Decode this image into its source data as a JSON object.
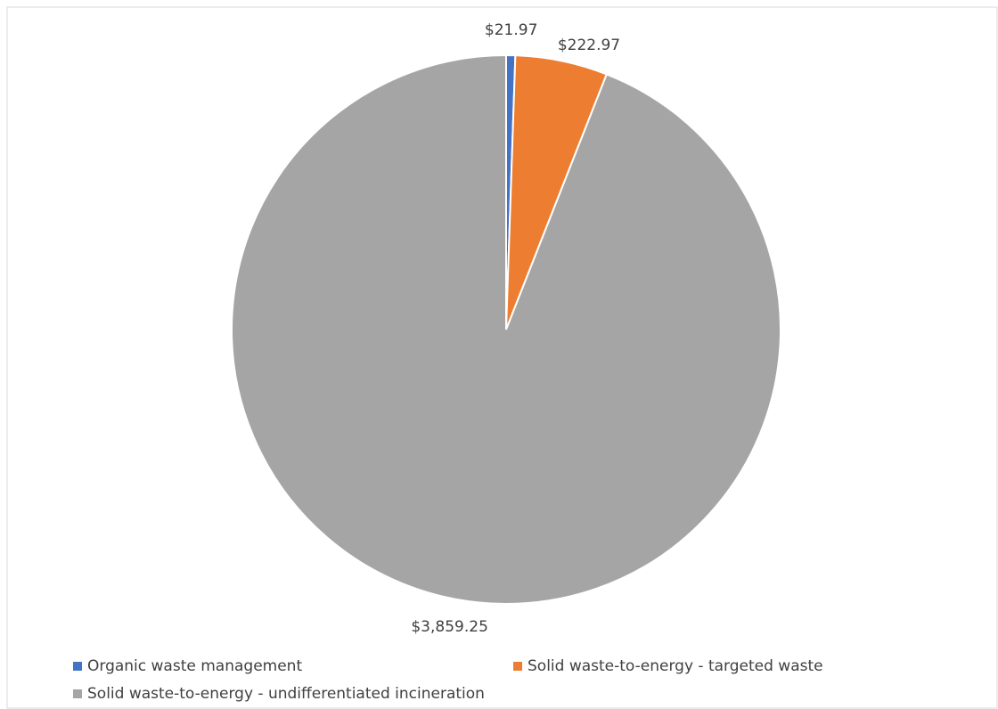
{
  "chart_data": {
    "type": "pie",
    "categories": [
      "Organic waste management",
      "Solid waste-to-energy - targeted waste",
      "Solid waste-to-energy - undifferentiated incineration"
    ],
    "values": [
      21.97,
      222.97,
      3859.25
    ],
    "value_labels": [
      "$21.97",
      "$222.97",
      "$3,859.25"
    ],
    "colors": [
      "#4472c4",
      "#ed7d31",
      "#a5a5a5"
    ],
    "legend": "bottom"
  }
}
